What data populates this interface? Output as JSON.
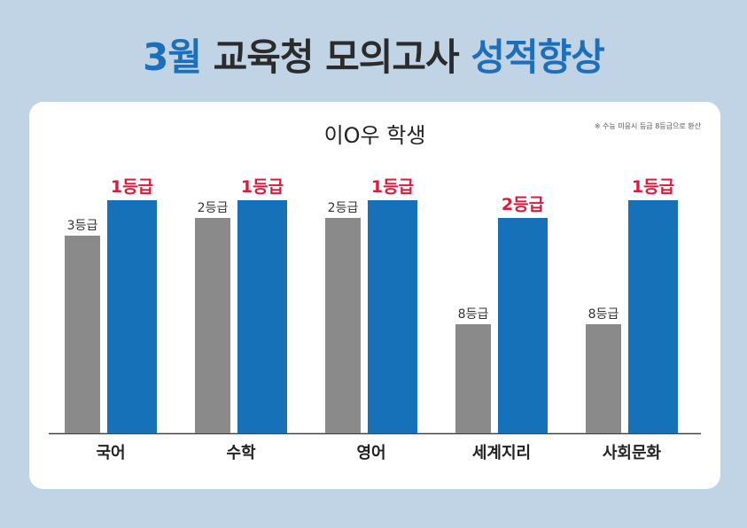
{
  "headline": {
    "part1": "3월",
    "part2": "교육청 모의고사",
    "part3": "성적향상",
    "accent_color": "#1e6fba"
  },
  "chart_data": {
    "type": "bar",
    "title": "이O우 학생",
    "note": "※ 수능 미응시 등급 8등급으로 환산",
    "categories": [
      "국어",
      "수학",
      "영어",
      "세계지리",
      "사회문화"
    ],
    "series": [
      {
        "values": [
          3,
          2,
          2,
          8,
          8
        ],
        "labels": [
          "3등급",
          "2등급",
          "2등급",
          "8등급",
          "8등급"
        ],
        "color": "#8a8a8a"
      },
      {
        "values": [
          1,
          1,
          1,
          2,
          1
        ],
        "labels": [
          "1등급",
          "1등급",
          "1등급",
          "2등급",
          "1등급"
        ],
        "color": "#1671b8",
        "label_color": "#e0183c"
      }
    ],
    "axis": "grade (lower is better)",
    "grid": false
  }
}
